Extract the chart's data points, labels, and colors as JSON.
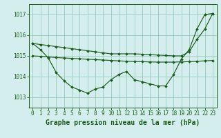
{
  "title": "Graphe pression niveau de la mer (hPa)",
  "background_color": "#d4eeee",
  "grid_color": "#99ccbb",
  "line_color": "#1a5c1a",
  "hours": [
    0,
    1,
    2,
    3,
    4,
    5,
    6,
    7,
    8,
    9,
    10,
    11,
    12,
    13,
    14,
    15,
    16,
    17,
    18,
    19,
    20,
    21,
    22,
    23
  ],
  "series_jagged": [
    1015.6,
    1015.3,
    1014.9,
    1014.2,
    1013.8,
    1013.5,
    1013.35,
    1013.2,
    1013.4,
    1013.5,
    1013.85,
    1014.1,
    1014.25,
    1013.85,
    1013.75,
    1013.65,
    1013.55,
    1013.55,
    1014.1,
    1014.85,
    1015.3,
    1016.3,
    1017.0,
    1017.05
  ],
  "series_flat": [
    1015.0,
    1014.98,
    1014.95,
    1014.92,
    1014.9,
    1014.88,
    1014.86,
    1014.84,
    1014.82,
    1014.8,
    1014.78,
    1014.76,
    1014.74,
    1014.73,
    1014.72,
    1014.71,
    1014.7,
    1014.7,
    1014.7,
    1014.71,
    1014.72,
    1014.74,
    1014.76,
    1014.78
  ],
  "series_diagonal": [
    1015.6,
    1015.55,
    1015.5,
    1015.45,
    1015.4,
    1015.35,
    1015.3,
    1015.25,
    1015.2,
    1015.15,
    1015.1,
    1015.1,
    1015.1,
    1015.1,
    1015.08,
    1015.06,
    1015.04,
    1015.02,
    1015.0,
    1015.0,
    1015.2,
    1015.8,
    1016.3,
    1017.05
  ],
  "ylim": [
    1012.5,
    1017.5
  ],
  "yticks": [
    1013,
    1014,
    1015,
    1016,
    1017
  ],
  "marker": "D",
  "markersize": 2.0,
  "linewidth": 0.85,
  "tick_fontsize": 5.5,
  "title_fontsize": 7.0
}
